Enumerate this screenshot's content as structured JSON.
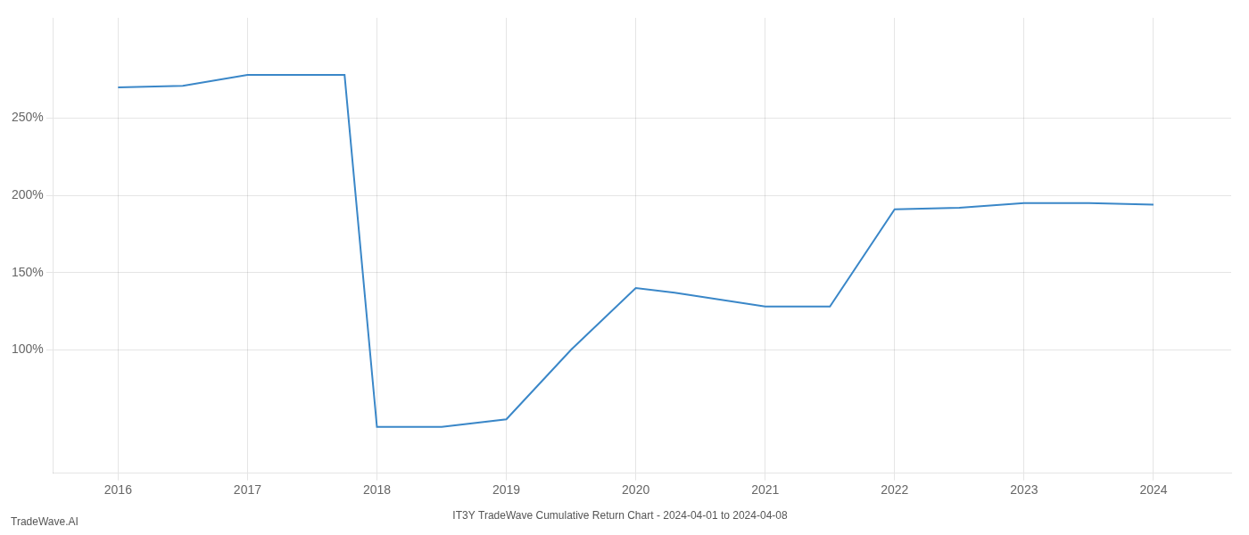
{
  "chart_data": {
    "type": "line",
    "title": "IT3Y TradeWave Cumulative Return Chart - 2024-04-01 to 2024-04-08",
    "annotations": [
      "TradeWave.AI"
    ],
    "x": [
      2016,
      2016.5,
      2017,
      2017.75,
      2018,
      2018.5,
      2019,
      2019.5,
      2020,
      2020.3,
      2021,
      2021.5,
      2022,
      2022.5,
      2023,
      2023.5,
      2024
    ],
    "values": [
      270,
      271,
      278,
      278,
      50,
      50,
      55,
      100,
      140,
      137,
      128,
      128,
      191,
      192,
      195,
      195,
      194
    ],
    "color": "#3a87c8",
    "xlim": [
      2015.5,
      2024.6
    ],
    "ylim": [
      20,
      315
    ],
    "xticks": [
      2016,
      2017,
      2018,
      2019,
      2020,
      2021,
      2022,
      2023,
      2024
    ],
    "yticks": [
      {
        "value": 100,
        "label": "100%"
      },
      {
        "value": 150,
        "label": "150%"
      },
      {
        "value": 200,
        "label": "200%"
      },
      {
        "value": 250,
        "label": "250%"
      }
    ],
    "grid": true
  }
}
